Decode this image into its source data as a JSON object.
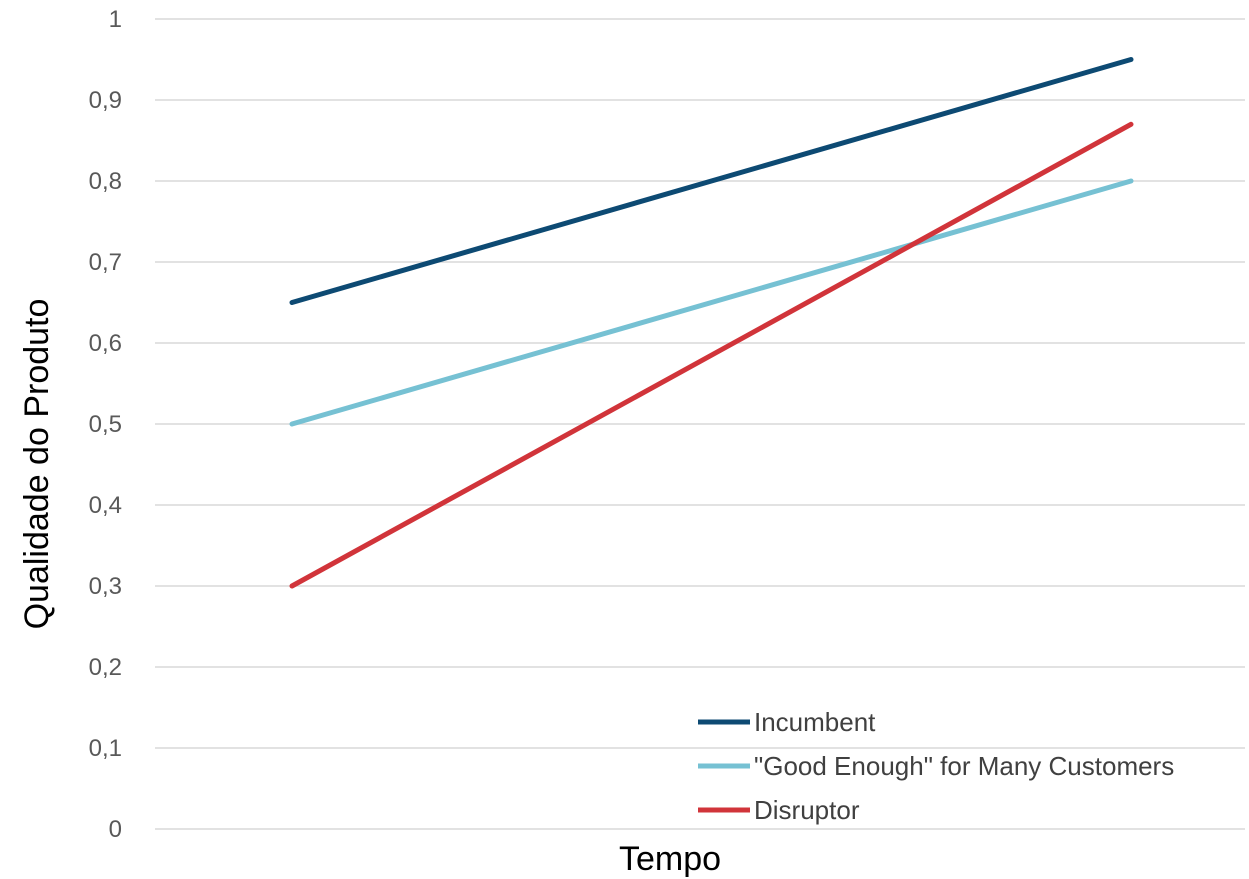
{
  "chart_data": {
    "type": "line",
    "xlabel": "Tempo",
    "ylabel": "Qualidade do Produto",
    "ylim": [
      0,
      1
    ],
    "yticks": [
      0,
      0.1,
      0.2,
      0.3,
      0.4,
      0.5,
      0.6,
      0.7,
      0.8,
      0.9,
      1
    ],
    "ytick_labels": [
      "0",
      "0,1",
      "0,2",
      "0,3",
      "0,4",
      "0,5",
      "0,6",
      "0,7",
      "0,8",
      "0,9",
      "1"
    ],
    "x": [
      1,
      2
    ],
    "grid": true,
    "legend_position": "bottom-right",
    "series": [
      {
        "name": "Incumbent",
        "values": [
          0.65,
          0.95
        ],
        "color": "#0d4a73"
      },
      {
        "name": "\"Good Enough\" for Many Customers",
        "values": [
          0.5,
          0.8
        ],
        "color": "#76c1d3"
      },
      {
        "name": "Disruptor",
        "values": [
          0.3,
          0.87
        ],
        "color": "#d1343a"
      }
    ]
  }
}
